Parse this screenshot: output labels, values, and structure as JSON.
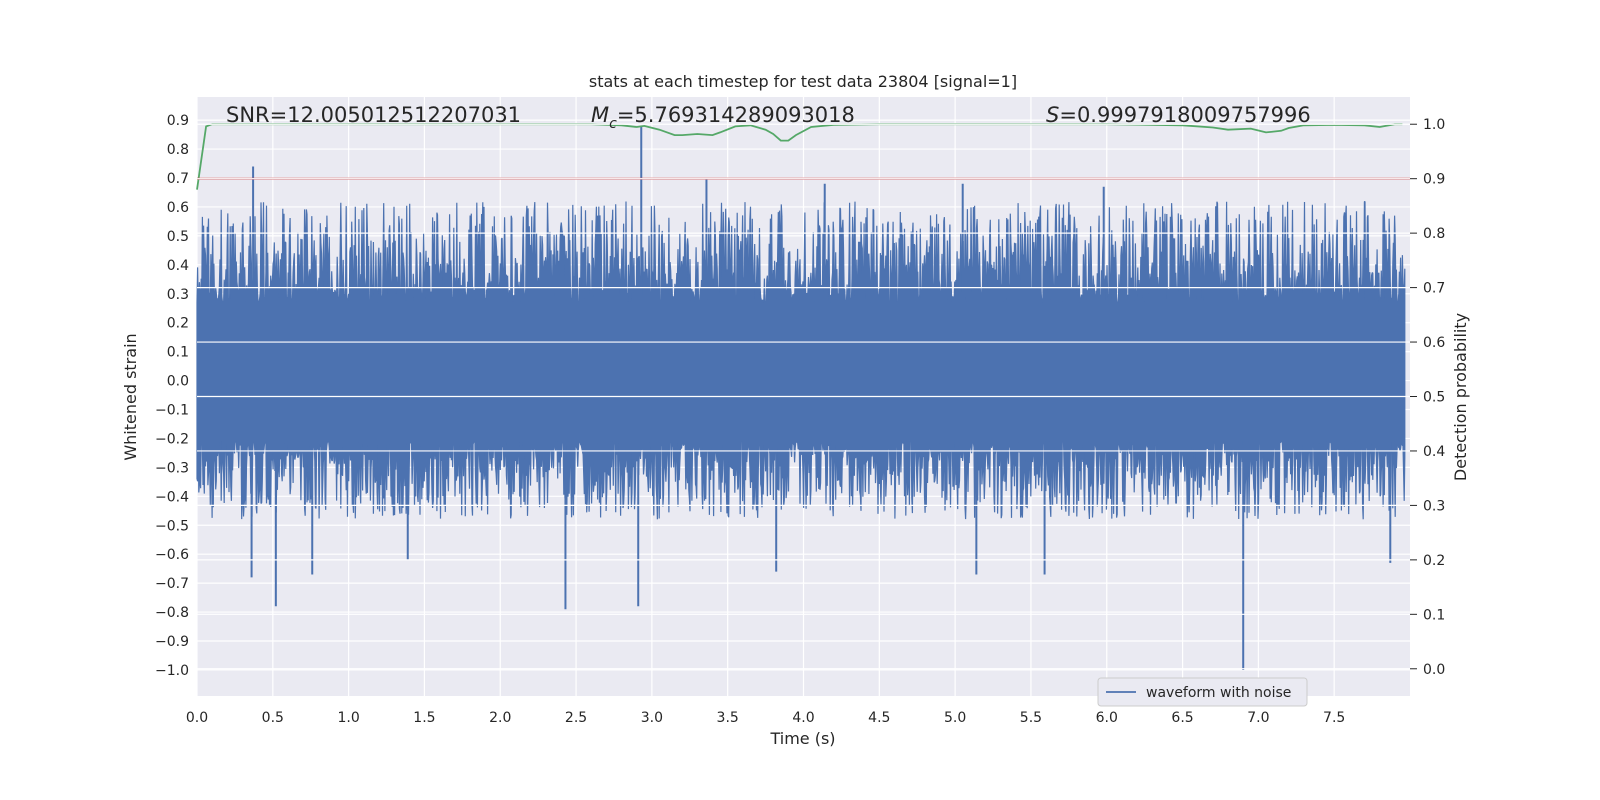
{
  "chart_data": {
    "type": "line",
    "title": "stats at each timestep for test data 23804 [signal=1]",
    "xlabel": "Time (s)",
    "ylabel": "Whitened strain",
    "y2label": "Detection probability",
    "xlim": [
      0.0,
      8.0
    ],
    "ylim": [
      -1.09,
      0.98
    ],
    "y2lim": [
      -0.05,
      1.05
    ],
    "xticks": [
      "0.0",
      "0.5",
      "1.0",
      "1.5",
      "2.0",
      "2.5",
      "3.0",
      "3.5",
      "4.0",
      "4.5",
      "5.0",
      "5.5",
      "6.0",
      "6.5",
      "7.0",
      "7.5"
    ],
    "yticks": [
      "0.9",
      "0.8",
      "0.7",
      "0.6",
      "0.5",
      "0.4",
      "0.3",
      "0.2",
      "0.1",
      "0.0",
      "−0.1",
      "−0.2",
      "−0.3",
      "−0.4",
      "−0.5",
      "−0.6",
      "−0.7",
      "−0.8",
      "−0.9",
      "−1.0"
    ],
    "y2ticks": [
      "1.0",
      "0.9",
      "0.8",
      "0.7",
      "0.6",
      "0.5",
      "0.4",
      "0.3",
      "0.2",
      "0.1",
      "0.0"
    ],
    "grid": true,
    "legend_position": "lower-right",
    "annotations": {
      "snr": "SNR=12.005012512207031",
      "mc_symbol": "M",
      "mc_sub": "c",
      "mc_value": "=5.769314289093018",
      "s_symbol": "S",
      "s_value": "=0.9997918009757996"
    },
    "series": [
      {
        "name": "waveform with noise",
        "axis": "left",
        "color": "#4c72b0",
        "rendering": "dense whitened strain noise; envelope approx. +0.6 / -0.5, notable spikes listed",
        "envelope": [
          0.62,
          -0.48
        ],
        "spikes": [
          {
            "x": 0.37,
            "y": 0.74
          },
          {
            "x": 0.52,
            "y": -0.78
          },
          {
            "x": 0.36,
            "y": -0.68
          },
          {
            "x": 0.76,
            "y": -0.67
          },
          {
            "x": 1.39,
            "y": -0.62
          },
          {
            "x": 2.43,
            "y": -0.79
          },
          {
            "x": 2.91,
            "y": -0.78
          },
          {
            "x": 2.93,
            "y": 0.88
          },
          {
            "x": 3.36,
            "y": 0.7
          },
          {
            "x": 3.82,
            "y": -0.66
          },
          {
            "x": 4.14,
            "y": 0.68
          },
          {
            "x": 5.05,
            "y": 0.68
          },
          {
            "x": 5.14,
            "y": -0.67
          },
          {
            "x": 5.59,
            "y": -0.67
          },
          {
            "x": 5.98,
            "y": 0.67
          },
          {
            "x": 6.9,
            "y": -1.0
          },
          {
            "x": 7.87,
            "y": -0.63
          }
        ]
      },
      {
        "name": "",
        "axis": "right",
        "color": "#55a868",
        "x": [
          0.0,
          0.06,
          0.1,
          0.3,
          0.8,
          1.5,
          2.0,
          2.6,
          2.8,
          2.9,
          2.95,
          3.05,
          3.15,
          3.2,
          3.3,
          3.4,
          3.45,
          3.55,
          3.65,
          3.75,
          3.8,
          3.85,
          3.9,
          3.95,
          4.05,
          4.2,
          4.5,
          5.0,
          5.5,
          6.0,
          6.5,
          6.7,
          6.8,
          6.95,
          7.05,
          7.15,
          7.2,
          7.3,
          7.5,
          7.7,
          7.8,
          7.9,
          7.95
        ],
        "values": [
          0.88,
          0.996,
          1.0,
          1.0,
          1.0,
          1.0,
          1.0,
          1.0,
          0.998,
          0.995,
          0.997,
          0.99,
          0.98,
          0.98,
          0.982,
          0.98,
          0.985,
          0.996,
          0.998,
          0.99,
          0.982,
          0.97,
          0.97,
          0.98,
          0.995,
          0.999,
          1.0,
          1.0,
          1.0,
          1.0,
          0.998,
          0.994,
          0.99,
          0.992,
          0.985,
          0.988,
          0.993,
          0.998,
          0.999,
          0.998,
          0.995,
          1.0,
          1.0
        ]
      },
      {
        "name": "",
        "axis": "right",
        "color": "#c44e52",
        "type": "hline",
        "value": 0.9
      }
    ]
  }
}
